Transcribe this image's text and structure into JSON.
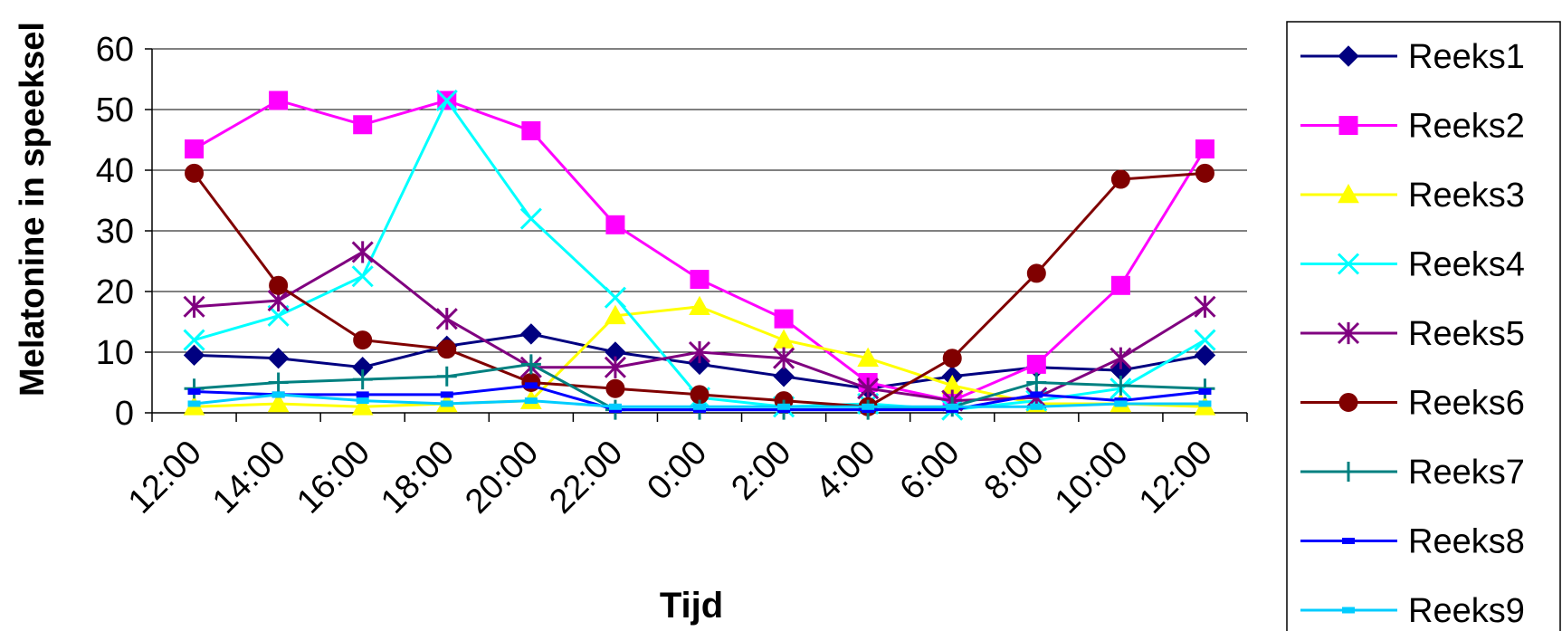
{
  "chart_data": {
    "type": "line",
    "xlabel": "Tijd",
    "ylabel": "Melatonine in speeksel",
    "ylim": [
      0,
      60
    ],
    "yticks": [
      0,
      10,
      20,
      30,
      40,
      50,
      60
    ],
    "categories": [
      "12:00",
      "14:00",
      "16:00",
      "18:00",
      "20:00",
      "22:00",
      "0:00",
      "2:00",
      "4:00",
      "6:00",
      "8:00",
      "10:00",
      "12:00"
    ],
    "grid": "horizontal",
    "legend_position": "right",
    "series": [
      {
        "name": "Reeks1",
        "color": "#000080",
        "marker": "diamond",
        "values": [
          9.5,
          9,
          7.5,
          11,
          13,
          10,
          8,
          6,
          4,
          6,
          7.5,
          7,
          9.5
        ]
      },
      {
        "name": "Reeks2",
        "color": "#FF00FF",
        "marker": "square",
        "values": [
          43.5,
          51.5,
          47.5,
          51.5,
          46.5,
          31,
          22,
          15.5,
          5,
          2,
          8,
          21,
          43.5
        ]
      },
      {
        "name": "Reeks3",
        "color": "#FFFF00",
        "marker": "triangle",
        "values": [
          1,
          1.5,
          1,
          1.5,
          2,
          16,
          17.5,
          12,
          9,
          4.5,
          1.5,
          1.5,
          1
        ]
      },
      {
        "name": "Reeks4",
        "color": "#00FFFF",
        "marker": "x",
        "values": [
          12,
          16,
          22.5,
          51.5,
          32,
          19,
          2.5,
          1,
          1.5,
          0.5,
          2,
          4,
          12
        ]
      },
      {
        "name": "Reeks5",
        "color": "#800080",
        "marker": "star",
        "values": [
          17.5,
          18.5,
          26.5,
          15.5,
          7.5,
          7.5,
          10,
          9,
          4,
          2,
          2.5,
          9,
          17.5
        ]
      },
      {
        "name": "Reeks6",
        "color": "#800000",
        "marker": "circle",
        "values": [
          39.5,
          21,
          12,
          10.5,
          5,
          4,
          3,
          2,
          1,
          9,
          23,
          38.5,
          39.5
        ]
      },
      {
        "name": "Reeks7",
        "color": "#008080",
        "marker": "plus",
        "values": [
          4,
          5,
          5.5,
          6,
          8,
          0.5,
          0.5,
          0.5,
          0.5,
          1,
          5,
          4.5,
          4
        ]
      },
      {
        "name": "Reeks8",
        "color": "#0000FF",
        "marker": "dash",
        "values": [
          3.5,
          3,
          3,
          3,
          4.5,
          0.5,
          0.5,
          0.5,
          0.5,
          0.5,
          3,
          2,
          3.5
        ]
      },
      {
        "name": "Reeks9",
        "color": "#00CCFF",
        "marker": "dash",
        "values": [
          1.5,
          3,
          2,
          1.5,
          2,
          1,
          1,
          1,
          1,
          1,
          1,
          1.5,
          1.5
        ]
      }
    ]
  }
}
